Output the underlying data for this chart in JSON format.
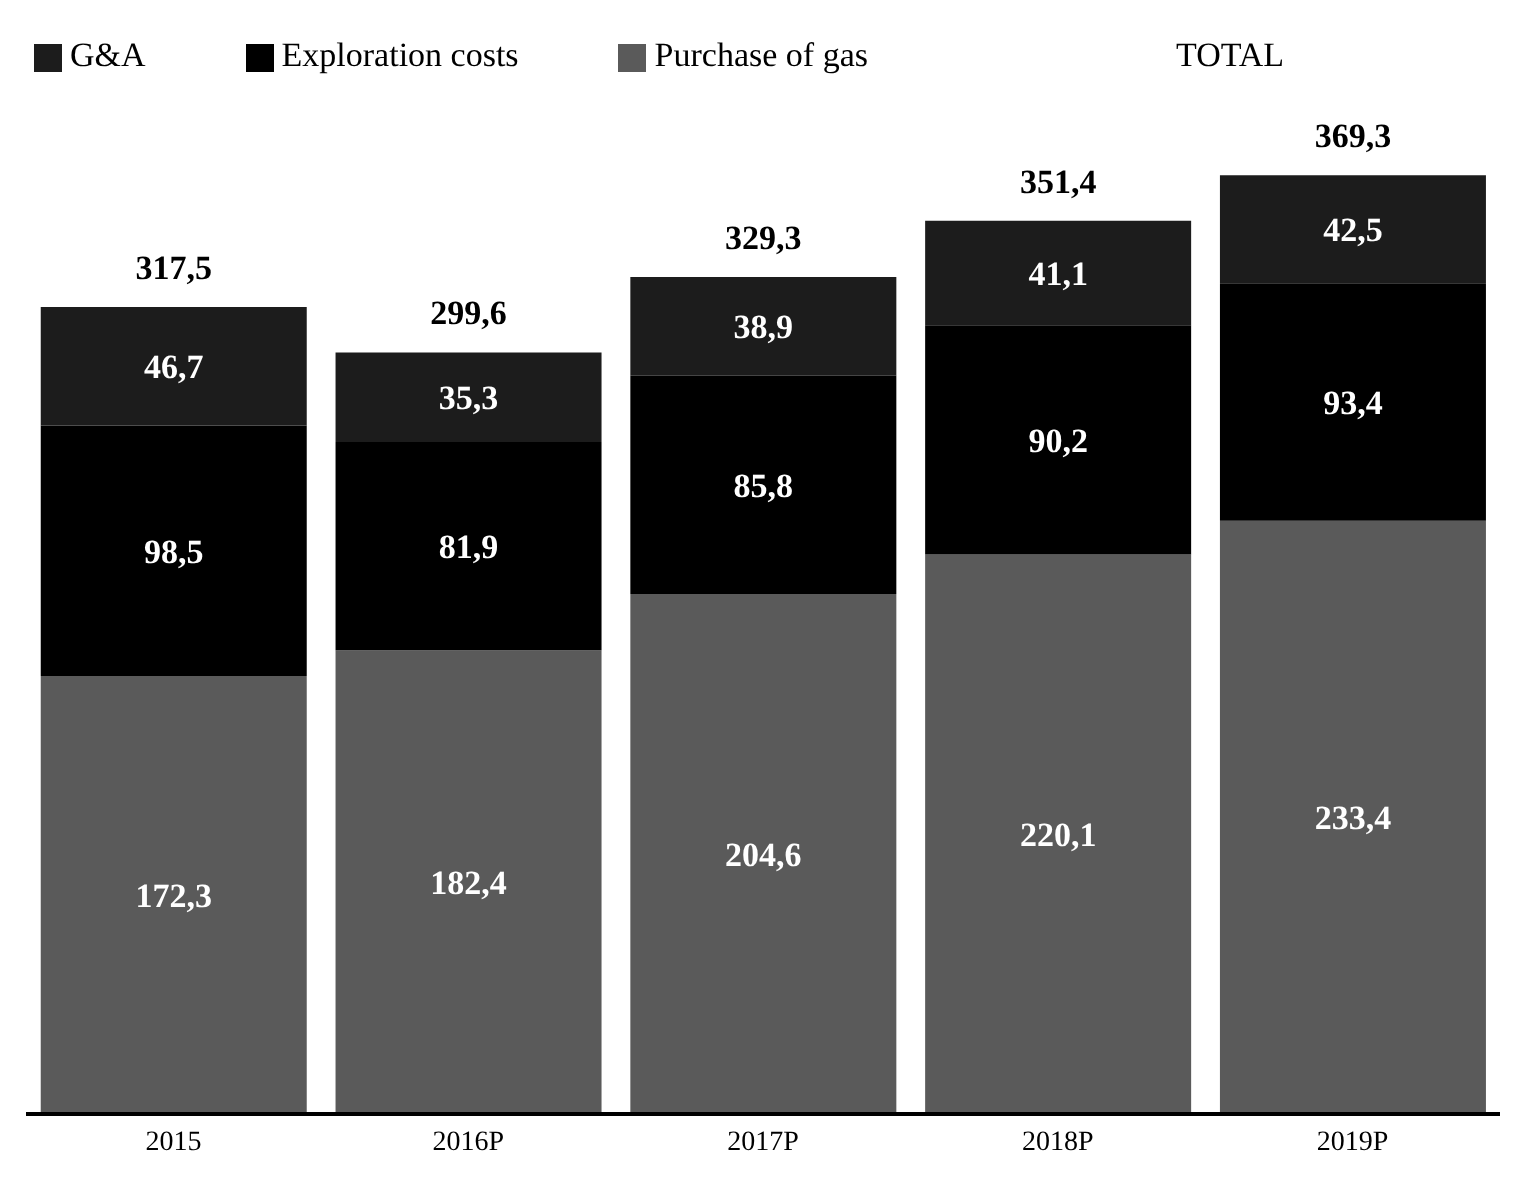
{
  "chart_data": {
    "type": "bar",
    "stacked": true,
    "categories": [
      "2015",
      "2016P",
      "2017P",
      "2018P",
      "2019P"
    ],
    "series": [
      {
        "name": "Purchase of gas",
        "color": "#5a5a5a",
        "values": [
          172.3,
          182.4,
          204.6,
          220.1,
          233.4
        ],
        "value_labels": [
          "172,3",
          "182,4",
          "204,6",
          "220,1",
          "233,4"
        ]
      },
      {
        "name": "Exploration costs",
        "color": "#000000",
        "values": [
          98.5,
          81.9,
          85.8,
          90.2,
          93.4
        ],
        "value_labels": [
          "98,5",
          "81,9",
          "85,8",
          "90,2",
          "93,4"
        ]
      },
      {
        "name": "G&A",
        "color": "#1c1c1c",
        "values": [
          46.7,
          35.3,
          38.9,
          41.1,
          42.5
        ],
        "value_labels": [
          "46,7",
          "35,3",
          "38,9",
          "41,1",
          "42,5"
        ]
      }
    ],
    "totals": [
      "317,5",
      "299,6",
      "329,3",
      "351,4",
      "369,3"
    ],
    "annotations": [
      "TOTAL"
    ],
    "legend": "top"
  }
}
